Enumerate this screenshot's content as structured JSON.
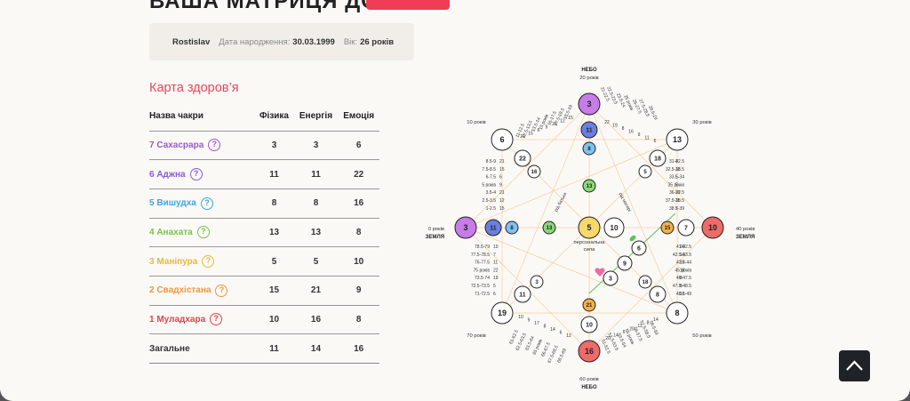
{
  "hero": {
    "title": "ВАША МАТРИЦЯ ДОЛІ"
  },
  "profile": {
    "name": "Rostislav",
    "birth_label": "Дата народження:",
    "birth_date": "30.03.1999",
    "age_label": "Вік:",
    "age_value": "26 років"
  },
  "health": {
    "title": "Карта здоров’я",
    "headers": [
      "Назва чакри",
      "Фізика",
      "Енергія",
      "Емоція"
    ],
    "rows": [
      {
        "name": "7 Сахасрара",
        "color": "#9b59d0",
        "physics": "3",
        "energy": "3",
        "emotion": "6"
      },
      {
        "name": "6 Аджна",
        "color": "#8a5bd6",
        "physics": "11",
        "energy": "11",
        "emotion": "22"
      },
      {
        "name": "5 Вишудха",
        "color": "#3aa8e0",
        "physics": "8",
        "energy": "8",
        "emotion": "16"
      },
      {
        "name": "4 Анахата",
        "color": "#7dc24a",
        "physics": "13",
        "energy": "13",
        "emotion": "8"
      },
      {
        "name": "3 Маніпура",
        "color": "#e8b93a",
        "physics": "5",
        "energy": "5",
        "emotion": "10"
      },
      {
        "name": "2 Свадхістана",
        "color": "#f0953a",
        "physics": "15",
        "energy": "21",
        "emotion": "9"
      },
      {
        "name": "1 Муладхара",
        "color": "#e0434f",
        "physics": "10",
        "energy": "16",
        "emotion": "8"
      }
    ],
    "total": {
      "name": "Загальне",
      "physics": "11",
      "energy": "14",
      "emotion": "16"
    }
  },
  "matrix": {
    "labels": {
      "top_name": "НЕБО",
      "top_age": "20 років",
      "bottom_name": "НЕБО",
      "bottom_age": "60 років",
      "left_name": "ЗЕМЛЯ",
      "left_age": "0 років",
      "right_name": "ЗЕМЛЯ",
      "right_age": "40 років",
      "tl_age": "10 років",
      "tr_age": "30 років",
      "bl_age": "70 років",
      "br_age": "50 років",
      "center_caption_1": "персональна",
      "center_caption_2": "сила",
      "father_line": "рід батька",
      "mother_line": "рід матері"
    },
    "values": {
      "top": "3",
      "top2": "11",
      "top3": "8",
      "left": "3",
      "left2": "11",
      "left3": "8",
      "right": "10",
      "right2": "7",
      "right3": "15",
      "bottom": "16",
      "bottom2": "10",
      "bottom3": "21",
      "center": "5",
      "center_r": "10",
      "center_l": "13",
      "center_t": "13",
      "tl": "6",
      "tl2": "22",
      "tl3": "16",
      "tr": "13",
      "tr2": "18",
      "tr3": "5",
      "bl": "19",
      "bl2": "11",
      "bl3": "3",
      "br": "8",
      "br2": "8",
      "br3": "18",
      "love1": "6",
      "love2": "9",
      "love3": "3"
    },
    "ages_left_upper": [
      {
        "age": "8.5-9",
        "val": "21"
      },
      {
        "age": "7.5-8.5",
        "val": "15"
      },
      {
        "age": "6-7.5",
        "val": "6"
      },
      {
        "age": "5 років",
        "val": "9"
      },
      {
        "age": "3.5-4",
        "val": "21"
      },
      {
        "age": "2.5-3.5",
        "val": "12"
      },
      {
        "age": "1-2.5",
        "val": "15"
      }
    ],
    "ages_left_lower": [
      {
        "age": "78.5-79",
        "val": "10"
      },
      {
        "age": "77.5-78.5",
        "val": "7"
      },
      {
        "age": "76-77.5",
        "val": "11"
      },
      {
        "age": "75 років",
        "val": "22"
      },
      {
        "age": "73.5-74",
        "val": "19"
      },
      {
        "age": "72.5-73.5",
        "val": "5"
      },
      {
        "age": "71-72.5",
        "val": "6"
      }
    ],
    "ages_right_upper": [
      {
        "age": "31-32.5",
        "val": "4"
      },
      {
        "age": "32.5-33.5",
        "val": "18"
      },
      {
        "age": "33.5-34",
        "val": "5"
      },
      {
        "age": "35 років",
        "val": "5"
      },
      {
        "age": "36-37.5",
        "val": "20"
      },
      {
        "age": "37.5-38.5",
        "val": "15"
      },
      {
        "age": "38.5-39",
        "val": "7"
      }
    ],
    "ages_right_lower": [
      {
        "age": "41-42.5",
        "val": "20"
      },
      {
        "age": "42.5-43.5",
        "val": "10"
      },
      {
        "age": "43.5-44",
        "val": "10"
      },
      {
        "age": "45 років",
        "val": "18"
      },
      {
        "age": "46-47.5",
        "val": "8"
      },
      {
        "age": "47.5-48.5",
        "val": "8"
      },
      {
        "age": "48.5-49",
        "val": "16"
      }
    ],
    "ages_top_left": [
      "11-12.5",
      "12.5-13.5",
      "13.5-14",
      "15 років",
      "16-17.5",
      "17.5-18.5",
      "18.5-19"
    ],
    "ages_top_left_vals": [
      "21",
      "15",
      "6",
      "9",
      "21",
      "12",
      "15"
    ],
    "ages_top_right": [
      "21-22.5",
      "22.5-23.5",
      "23.5-24",
      "25 років",
      "26-27.5",
      "27.5-28.5",
      "28.5-29"
    ],
    "ages_top_right_vals": [
      "22",
      "19",
      "8",
      "16",
      "9",
      "11",
      "6"
    ],
    "ages_bottom_left": [
      "61-62.5",
      "62.5-63.5",
      "63.5-64",
      "65 років",
      "66-67.5",
      "67.5-68.5",
      "68.5-69"
    ],
    "ages_bottom_left_vals": [
      "10",
      "9",
      "17",
      "8",
      "14",
      "6",
      "12"
    ],
    "ages_bottom_right": [
      "51-52.5",
      "52.5-53.5",
      "53.5-54",
      "55 років",
      "56-57.5",
      "57.5-58.5",
      "58.5-59"
    ],
    "ages_bottom_right_vals": [
      "20",
      "14",
      "6",
      "20",
      "11",
      "8",
      "14"
    ]
  },
  "colors": {
    "accent": "#e6465e",
    "purple": "#c77ce8",
    "blue": "#6b7fe0",
    "light_blue": "#7ec3f0",
    "green": "#8bd87a",
    "yellow": "#f7d96b",
    "orange": "#f5b04a",
    "red": "#f06a6a"
  }
}
